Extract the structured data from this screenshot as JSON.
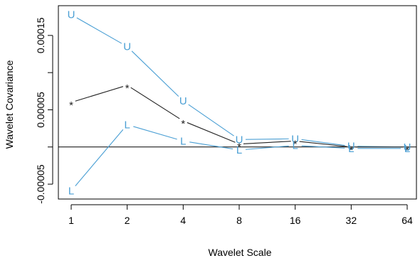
{
  "chart_data": {
    "type": "line",
    "xlabel": "Wavelet Scale",
    "ylabel": "Wavelet Covariance",
    "x": [
      1,
      2,
      4,
      8,
      16,
      32,
      64
    ],
    "x_tick_labels": [
      "1",
      "2",
      "4",
      "8",
      "16",
      "32",
      "64"
    ],
    "x_scale": "log2",
    "ylim": [
      -7e-05,
      0.00019
    ],
    "y_ticks": [
      -5e-05,
      5e-05,
      0.00015
    ],
    "y_tick_labels": [
      "-0.00005",
      "0.00005",
      "0.00015"
    ],
    "y_ticks_minor": [
      0.0,
      0.0001
    ],
    "reference_line_y": 0,
    "series": [
      {
        "role": "upper",
        "marker": "U",
        "color": "#4a9fd4",
        "values": [
          0.000178,
          0.000135,
          6.2e-05,
          1e-05,
          1.1e-05,
          1e-06,
          0.0
        ]
      },
      {
        "role": "estimate",
        "marker": "*",
        "color": "#222222",
        "values": [
          6e-05,
          8.3e-05,
          3.5e-05,
          4e-06,
          8e-06,
          0.0,
          0.0
        ]
      },
      {
        "role": "lower",
        "marker": "L",
        "color": "#4a9fd4",
        "values": [
          -5.9e-05,
          3e-05,
          8e-06,
          -4e-06,
          2e-06,
          -2e-06,
          -2e-06
        ]
      }
    ]
  }
}
